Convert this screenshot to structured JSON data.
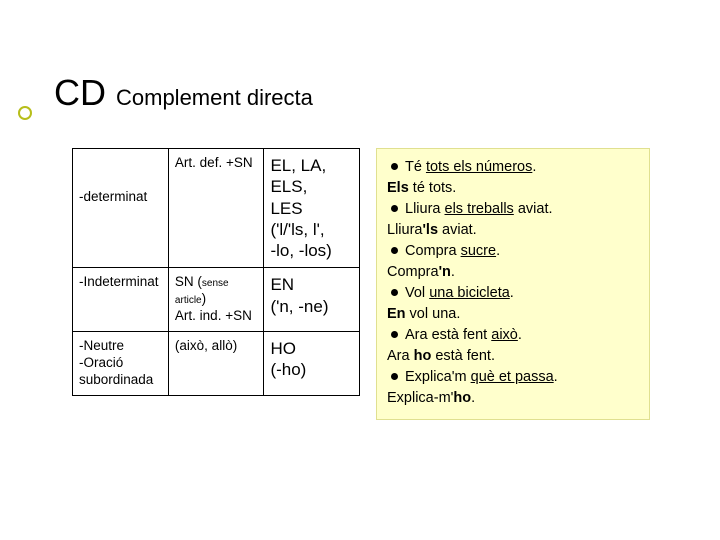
{
  "title": {
    "big": "CD",
    "sub": "Complement directa"
  },
  "table": {
    "columns": [
      "col-a",
      "col-b",
      "col-c"
    ],
    "rows": [
      {
        "a": "-determinat",
        "b": "Art. def. +SN",
        "c_lines": [
          "EL, LA,",
          "ELS,",
          "LES",
          "('l/'ls, l',",
          "-lo, -los)"
        ]
      },
      {
        "a": "-Indeterminat",
        "b_top": "SN (",
        "b_small": "sense article",
        "b_close": ")",
        "b_bottom": "Art. ind. +SN",
        "c_lines": [
          "EN",
          "('n, -ne)"
        ]
      },
      {
        "a_lines": [
          "-Neutre",
          "-Oració",
          "subordinada"
        ],
        "b": "(això, allò)",
        "c_lines": [
          "HO",
          "(-ho)"
        ]
      }
    ]
  },
  "examples": [
    {
      "bullet": true,
      "pre": "Té ",
      "u": "tots els números",
      "post": "."
    },
    {
      "bullet": false,
      "pre": "",
      "b": "Els",
      "post": " té tots."
    },
    {
      "bullet": true,
      "pre": "Lliura ",
      "u": "els treballs",
      "post": " aviat."
    },
    {
      "bullet": false,
      "pre": "Lliura",
      "b": "'ls",
      "post": " aviat."
    },
    {
      "bullet": true,
      "pre": "Compra ",
      "u": "sucre",
      "post": "."
    },
    {
      "bullet": false,
      "pre": "Compra",
      "b": "'n",
      "post": "."
    },
    {
      "bullet": true,
      "pre": "Vol ",
      "u": "una bicicleta",
      "post": "."
    },
    {
      "bullet": false,
      "pre": "",
      "b": "En",
      "post": " vol una."
    },
    {
      "bullet": true,
      "pre": "Ara està fent ",
      "u": "això",
      "post": "."
    },
    {
      "bullet": false,
      "pre": "Ara ",
      "b": "ho",
      "post": " està fent."
    },
    {
      "bullet": true,
      "pre": "Explica'm ",
      "u": "què et passa",
      "post": "."
    },
    {
      "bullet": false,
      "pre": "Explica-m'",
      "b": "ho",
      "post": "."
    }
  ],
  "colors": {
    "accent_ring": "#b7be1a",
    "example_bg": "#ffffcc",
    "example_border": "#e0e090"
  }
}
